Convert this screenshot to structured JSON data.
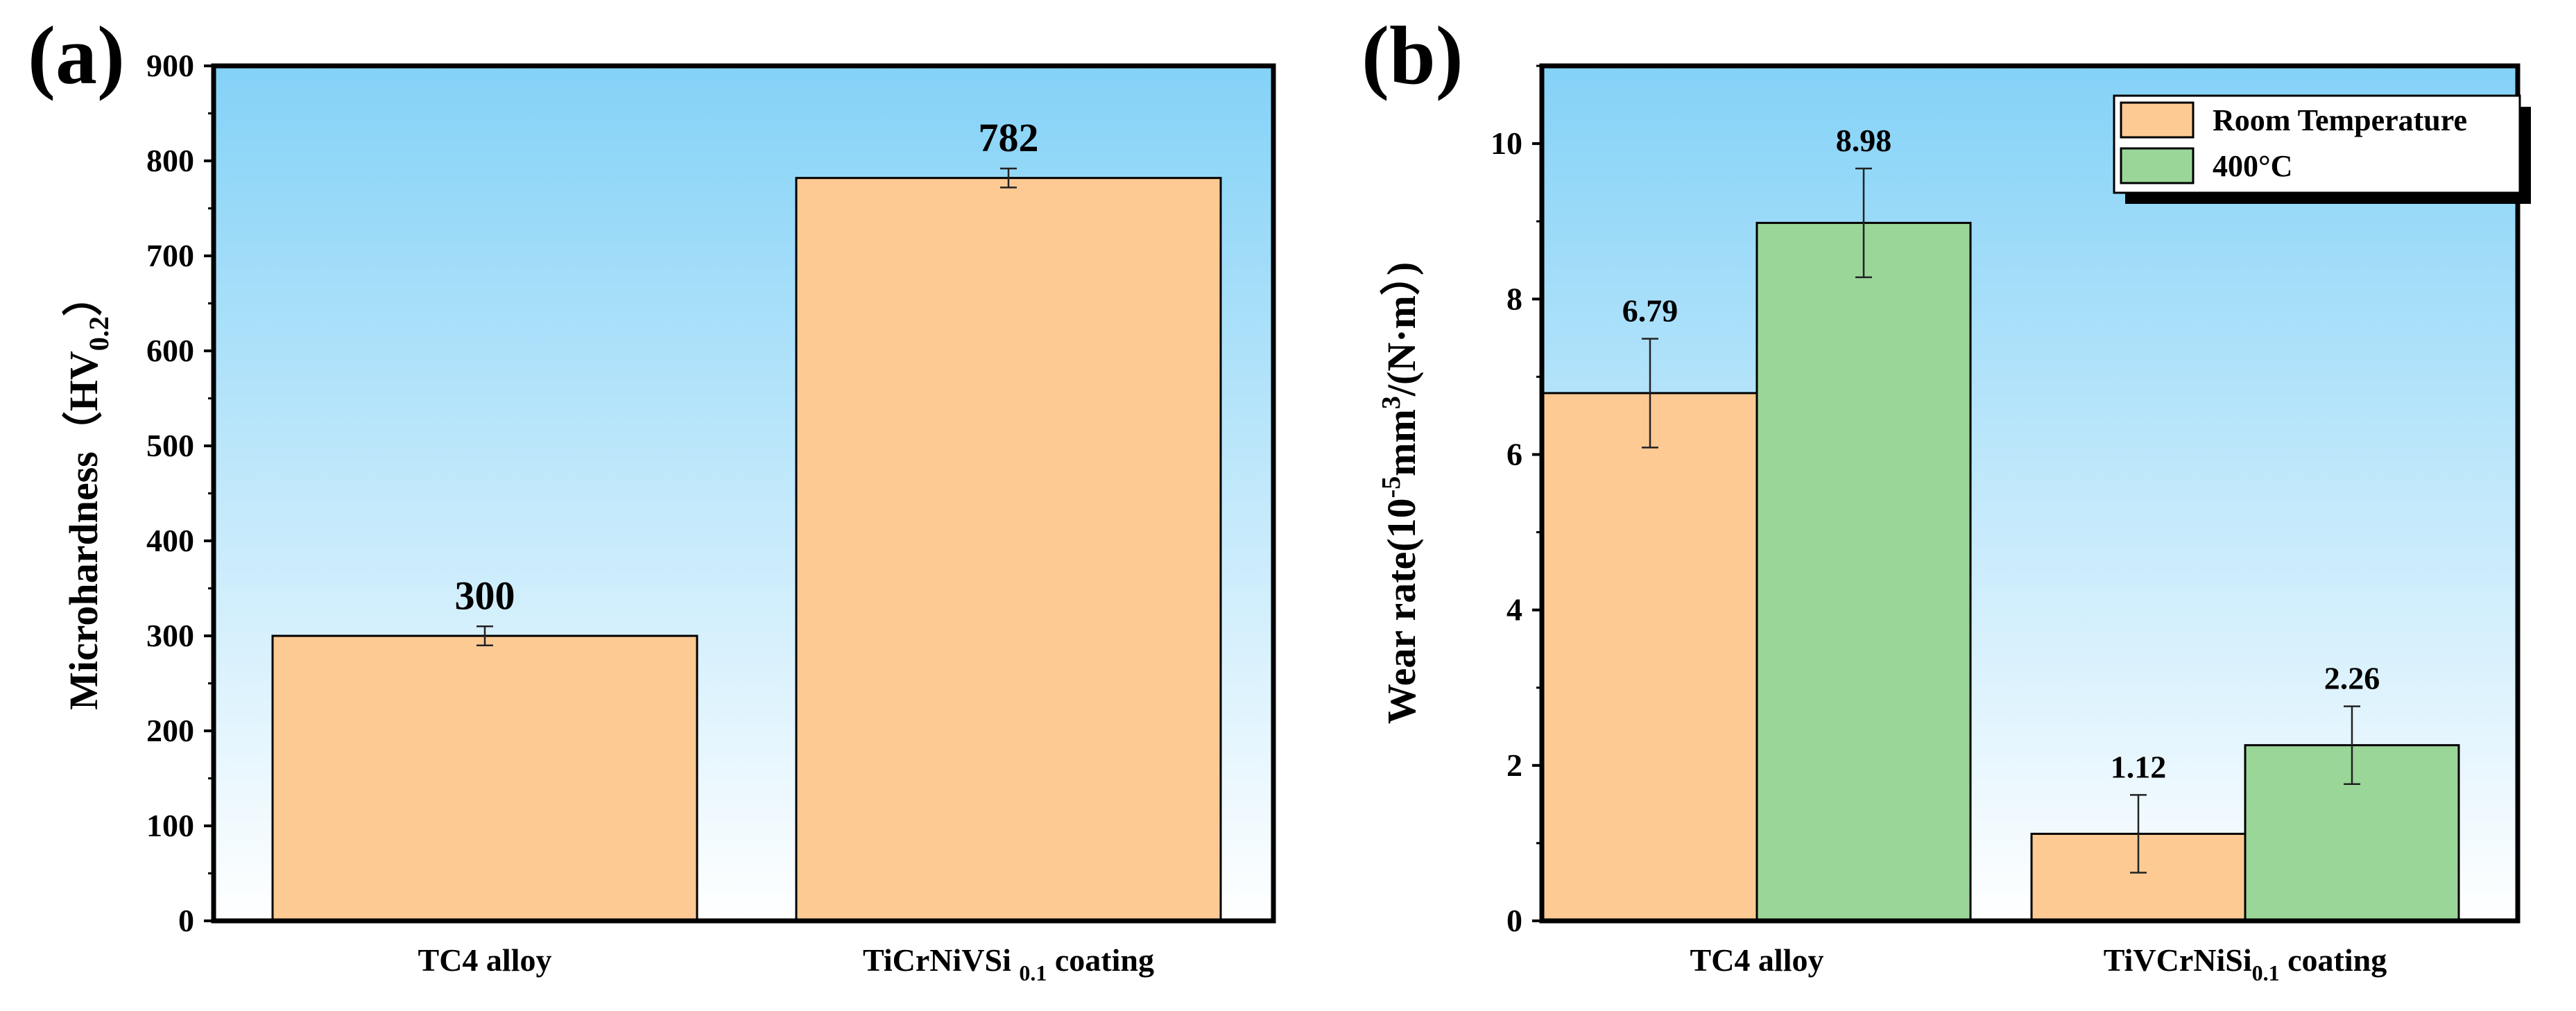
{
  "chart_data": [
    {
      "panel": "(a)",
      "type": "bar",
      "title": "",
      "xlabel": "",
      "ylabel": "Microhardness（HV",
      "ylabel_sub": "0.2",
      "ylabel_end": "）",
      "ylim": [
        0,
        900
      ],
      "yticks": [
        0,
        100,
        200,
        300,
        400,
        500,
        600,
        700,
        800,
        900
      ],
      "categories": [
        {
          "main": "TC4 alloy",
          "sub": "",
          "end": ""
        },
        {
          "main": "TiCrNiVSi ",
          "sub": "0.1",
          "end": " coating"
        }
      ],
      "series": [
        {
          "name": "Microhardness",
          "color": "#FDCA94",
          "values": [
            300,
            782
          ],
          "errors": [
            10,
            10
          ],
          "labels": [
            "300",
            "782"
          ]
        }
      ],
      "legend": null,
      "background": {
        "top": "#84D2F7",
        "bottom": "#FFFFFF"
      }
    },
    {
      "panel": "(b)",
      "type": "bar",
      "title": "",
      "xlabel": "",
      "ylabel": "Wear rate(10",
      "ylabel_sup1": "-5",
      "ylabel_mid": "mm",
      "ylabel_sup2": "3",
      "ylabel_end": "/(N·m）)",
      "ylim": [
        0,
        11
      ],
      "yticks": [
        0,
        2,
        4,
        6,
        8,
        10
      ],
      "categories": [
        {
          "main": "TC4 alloy",
          "sub": "",
          "end": ""
        },
        {
          "main": "TiVCrNiSi",
          "sub": "0.1",
          "end": " coating"
        }
      ],
      "series": [
        {
          "name": "Room Temperature",
          "color": "#FDCA94",
          "values": [
            6.79,
            1.12
          ],
          "errors": [
            0.7,
            0.5
          ],
          "labels": [
            "6.79",
            "1.12"
          ]
        },
        {
          "name": "400°C",
          "color": "#9BD699",
          "values": [
            8.98,
            2.26
          ],
          "errors": [
            0.7,
            0.5
          ],
          "labels": [
            "8.98",
            "2.26"
          ]
        }
      ],
      "legend": "top-right",
      "background": {
        "top": "#84D2F7",
        "bottom": "#FFFFFF"
      }
    }
  ]
}
